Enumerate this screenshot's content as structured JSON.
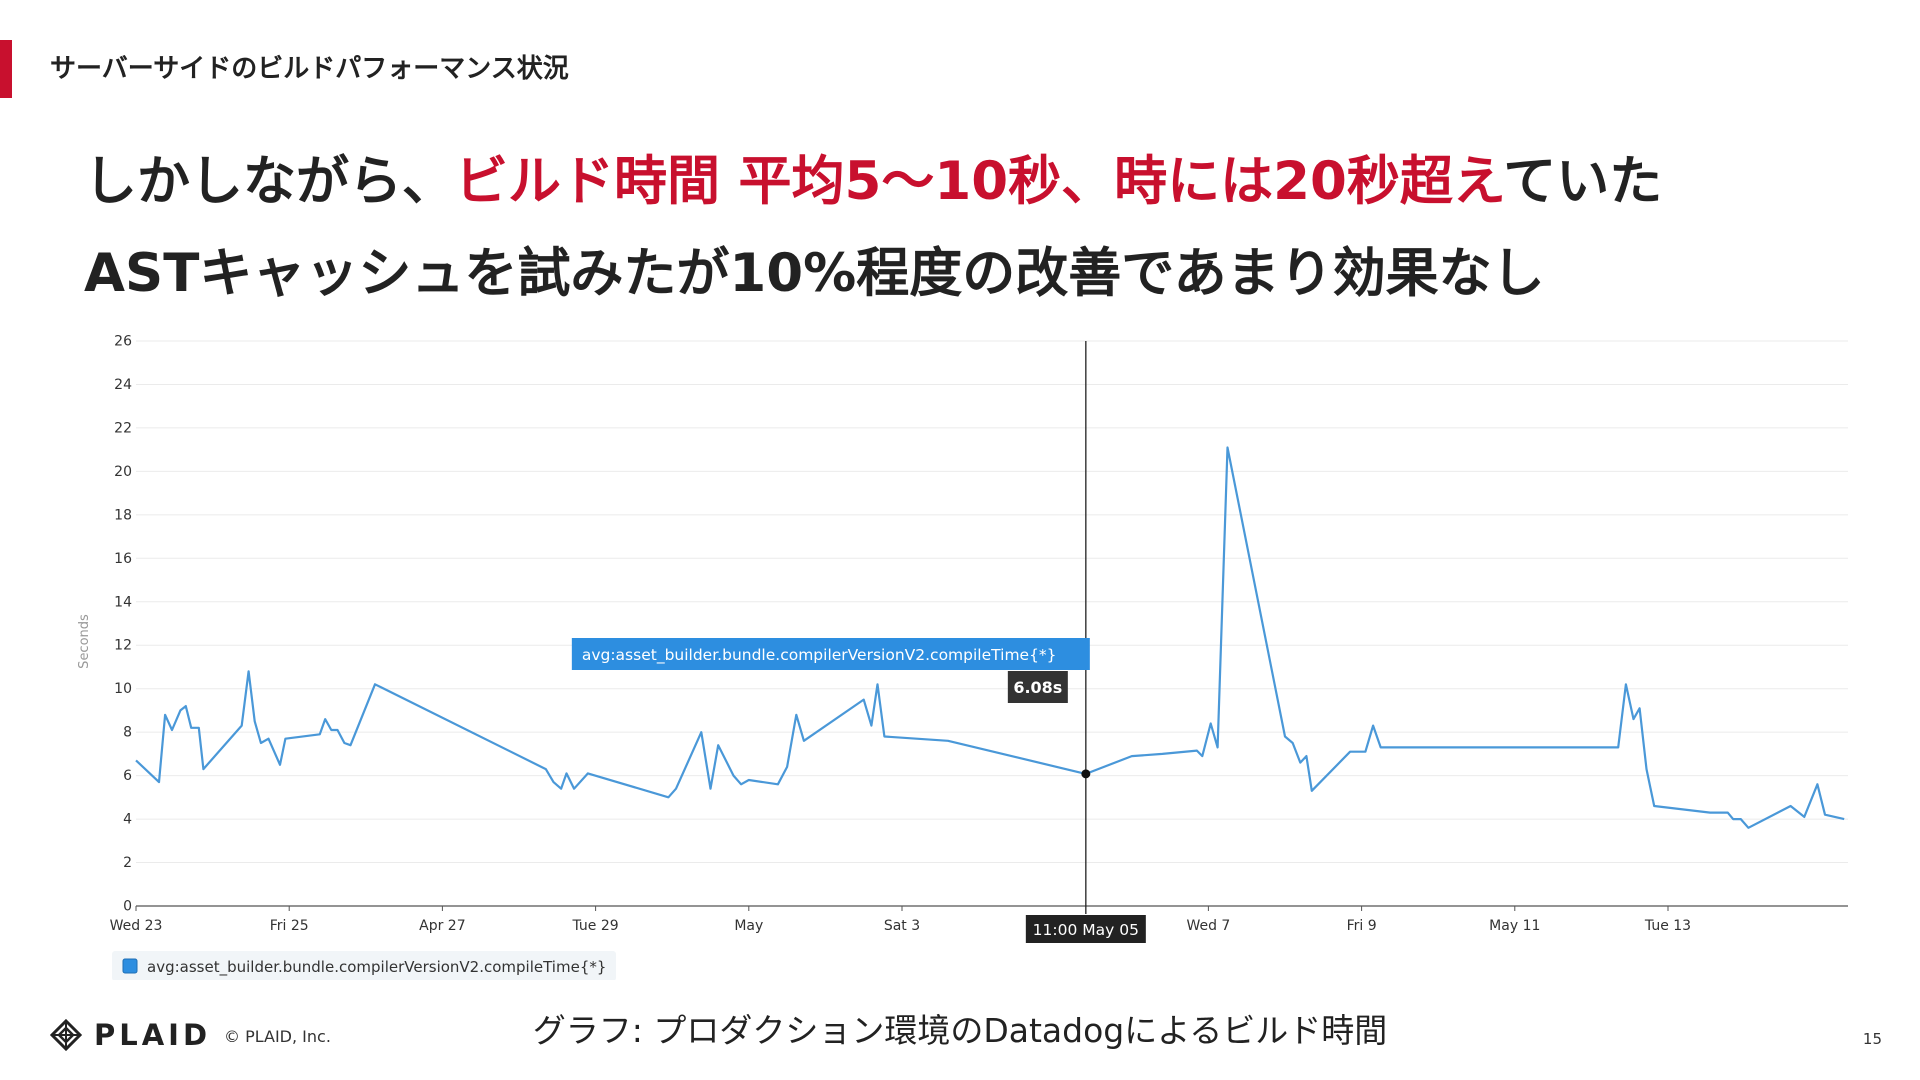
{
  "header": {
    "section_title": "サーバーサイドのビルドパフォーマンス状況",
    "headline_line1_pre": "しかしながら、",
    "headline_line1_highlight": "ビルド時間 平均5〜10秒、時には20秒超え",
    "headline_line1_post": "ていた",
    "headline_line2": "ASTキャッシュを試みたが10%程度の改善であまり効果なし"
  },
  "colors": {
    "accent": "#c8102e",
    "series": "#4a98d8",
    "tooltip_bg": "#2d8ee0",
    "dark": "#222222"
  },
  "chart_data": {
    "type": "line",
    "ylabel": "Seconds",
    "ylim": [
      0,
      26
    ],
    "yticks": [
      0,
      2,
      4,
      6,
      8,
      10,
      12,
      14,
      16,
      18,
      20,
      22,
      24,
      26
    ],
    "grid": true,
    "xlim": [
      0,
      22
    ],
    "xticks": [
      {
        "x": 0,
        "label": "Wed 23"
      },
      {
        "x": 2,
        "label": "Fri 25"
      },
      {
        "x": 4,
        "label": "Apr 27"
      },
      {
        "x": 6,
        "label": "Tue 29"
      },
      {
        "x": 8,
        "label": "May"
      },
      {
        "x": 10,
        "label": "Sat 3"
      },
      {
        "x": 14,
        "label": "Wed 7"
      },
      {
        "x": 16,
        "label": "Fri 9"
      },
      {
        "x": 18,
        "label": "May 11"
      },
      {
        "x": 20,
        "label": "Tue 13"
      }
    ],
    "series": [
      {
        "name": "avg:asset_builder.bundle.compilerVersionV2.compileTime{*}",
        "points": [
          [
            0.0,
            6.7
          ],
          [
            0.3,
            5.7
          ],
          [
            0.38,
            8.8
          ],
          [
            0.47,
            8.1
          ],
          [
            0.58,
            9.0
          ],
          [
            0.65,
            9.2
          ],
          [
            0.72,
            8.2
          ],
          [
            0.82,
            8.2
          ],
          [
            0.88,
            6.3
          ],
          [
            1.38,
            8.3
          ],
          [
            1.47,
            10.8
          ],
          [
            1.55,
            8.5
          ],
          [
            1.63,
            7.5
          ],
          [
            1.73,
            7.7
          ],
          [
            1.88,
            6.5
          ],
          [
            1.95,
            7.7
          ],
          [
            2.4,
            7.9
          ],
          [
            2.47,
            8.6
          ],
          [
            2.55,
            8.1
          ],
          [
            2.63,
            8.1
          ],
          [
            2.72,
            7.5
          ],
          [
            2.8,
            7.4
          ],
          [
            3.12,
            10.2
          ],
          [
            5.35,
            6.3
          ],
          [
            5.45,
            5.7
          ],
          [
            5.55,
            5.4
          ],
          [
            5.62,
            6.1
          ],
          [
            5.72,
            5.4
          ],
          [
            5.9,
            6.1
          ],
          [
            6.95,
            5.0
          ],
          [
            7.05,
            5.4
          ],
          [
            7.38,
            8.0
          ],
          [
            7.5,
            5.4
          ],
          [
            7.6,
            7.4
          ],
          [
            7.8,
            6.0
          ],
          [
            7.9,
            5.6
          ],
          [
            8.0,
            5.8
          ],
          [
            8.38,
            5.6
          ],
          [
            8.5,
            6.4
          ],
          [
            8.62,
            8.8
          ],
          [
            8.72,
            7.6
          ],
          [
            9.5,
            9.5
          ],
          [
            9.6,
            8.3
          ],
          [
            9.68,
            10.2
          ],
          [
            9.77,
            7.8
          ],
          [
            10.6,
            7.6
          ],
          [
            12.4,
            6.08
          ],
          [
            13.0,
            6.9
          ],
          [
            13.4,
            7.0
          ],
          [
            13.85,
            7.15
          ],
          [
            13.92,
            6.9
          ],
          [
            14.03,
            8.4
          ],
          [
            14.12,
            7.3
          ],
          [
            14.25,
            21.1
          ],
          [
            15.0,
            7.8
          ],
          [
            15.1,
            7.5
          ],
          [
            15.2,
            6.6
          ],
          [
            15.28,
            6.9
          ],
          [
            15.35,
            5.3
          ],
          [
            15.85,
            7.1
          ],
          [
            15.95,
            7.1
          ],
          [
            16.05,
            7.1
          ],
          [
            16.15,
            8.3
          ],
          [
            16.25,
            7.3
          ],
          [
            19.35,
            7.3
          ],
          [
            19.45,
            10.2
          ],
          [
            19.55,
            8.6
          ],
          [
            19.63,
            9.1
          ],
          [
            19.72,
            6.3
          ],
          [
            19.82,
            4.6
          ],
          [
            20.55,
            4.3
          ],
          [
            20.78,
            4.3
          ],
          [
            20.85,
            4.0
          ],
          [
            20.95,
            4.0
          ],
          [
            21.05,
            3.6
          ],
          [
            21.6,
            4.6
          ],
          [
            21.78,
            4.1
          ],
          [
            21.95,
            5.6
          ],
          [
            22.05,
            4.2
          ],
          [
            22.3,
            4.0
          ]
        ]
      }
    ],
    "cursor": {
      "x": 12.4,
      "value_label": "6.08s",
      "time_label": "11:00 May 05",
      "series_label": "avg:asset_builder.bundle.compilerVersionV2.compileTime{*}"
    },
    "legend": {
      "position": "bottom-left",
      "entries": [
        "avg:asset_builder.bundle.compilerVersionV2.compileTime{*}"
      ]
    }
  },
  "footer": {
    "caption": "グラフ: プロダクション環境のDatadogによるビルド時間",
    "logo_text": "PLAID",
    "copyright": "© PLAID, Inc.",
    "page_number": "15"
  }
}
